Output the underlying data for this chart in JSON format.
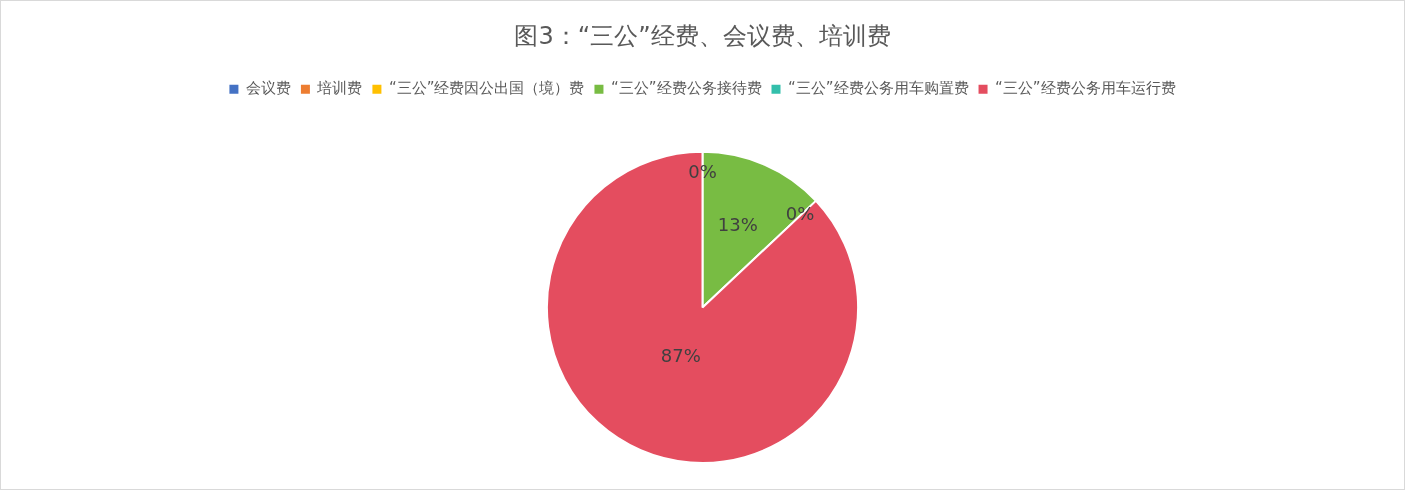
{
  "chart_data": {
    "type": "pie",
    "title": "图3：“三公”经费、会议费、培训费",
    "categories": [
      "会议费",
      "培训费",
      "“三公”经费因公出国（境）费",
      "“三公”经费公务接待费",
      "“三公”经费公务用车购置费",
      "“三公”经费公务用车运行费"
    ],
    "values": [
      0,
      0,
      0,
      13,
      0,
      87
    ],
    "colors": [
      "#4472c4",
      "#ed7d31",
      "#ffc000",
      "#78bc43",
      "#33bfab",
      "#e44d5f"
    ],
    "value_labels": [
      "0%",
      null,
      null,
      "13%",
      "0%",
      "87%"
    ],
    "legend": "top"
  }
}
